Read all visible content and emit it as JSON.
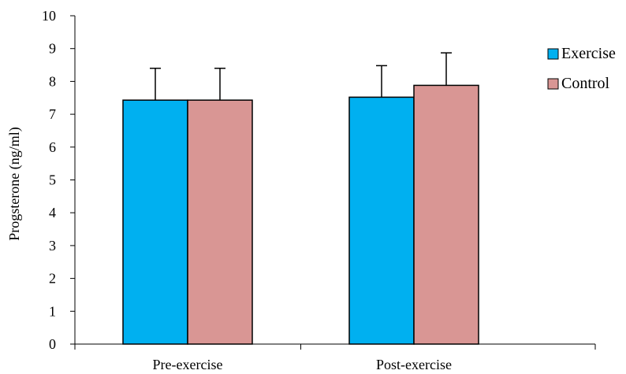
{
  "chart_data": {
    "type": "bar",
    "title": "",
    "xlabel": "",
    "ylabel": "Progsterone (ng/ml)",
    "ylim": [
      0,
      10
    ],
    "yticks": [
      0,
      1,
      2,
      3,
      4,
      5,
      6,
      7,
      8,
      9,
      10
    ],
    "categories": [
      "Pre-exercise",
      "Post-exercise"
    ],
    "series": [
      {
        "name": "Exercise",
        "color": "#00b0f0",
        "values": [
          7.43,
          7.52
        ],
        "errors": [
          0.97,
          0.96
        ]
      },
      {
        "name": "Control",
        "color": "#d99694",
        "values": [
          7.43,
          7.88
        ],
        "errors": [
          0.97,
          0.99
        ]
      }
    ],
    "grid": false,
    "legend": "right"
  }
}
